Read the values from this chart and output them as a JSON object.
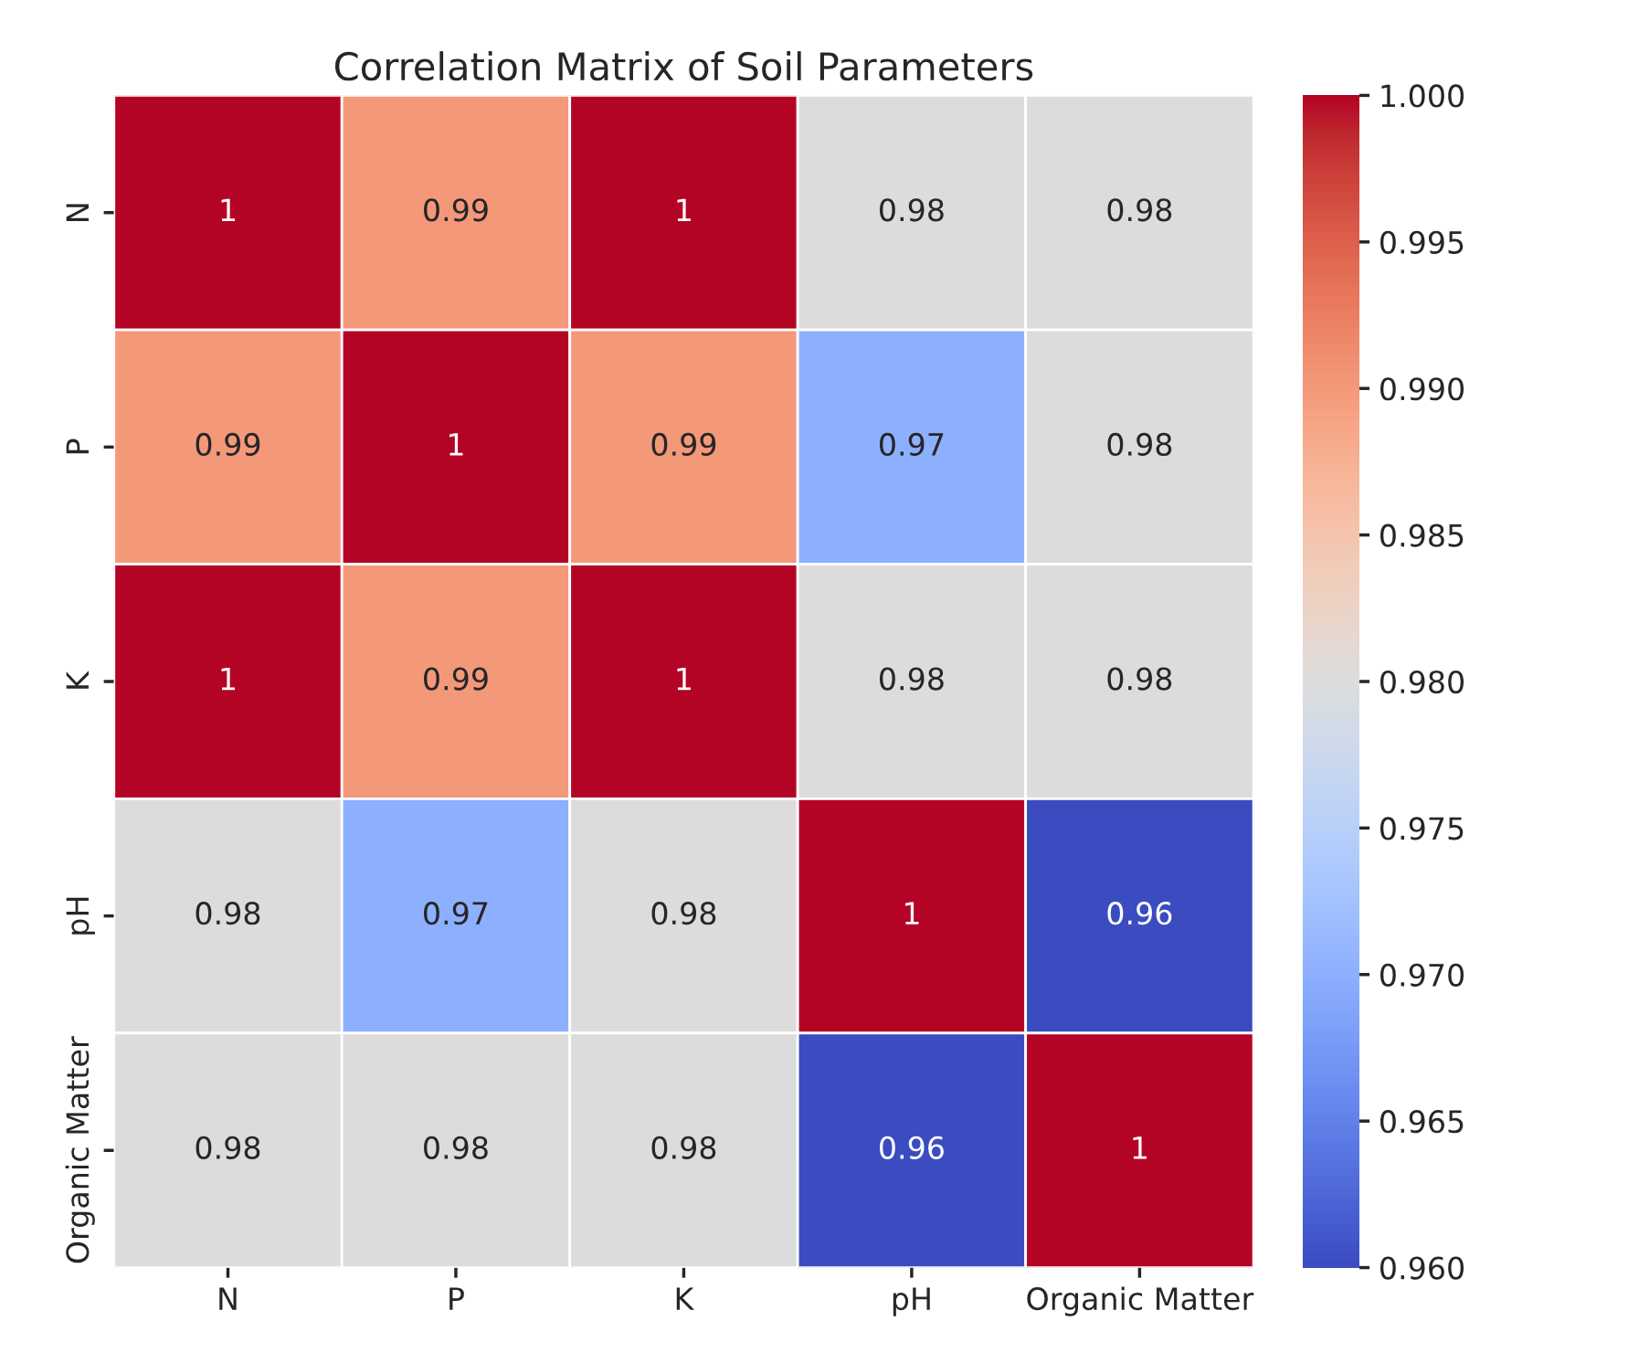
{
  "chart_data": {
    "type": "heatmap",
    "title": "Correlation Matrix of Soil Parameters",
    "categories": [
      "N",
      "P",
      "K",
      "pH",
      "Organic Matter"
    ],
    "y_categories": [
      "N",
      "P",
      "K",
      "pH",
      "Organic Matter"
    ],
    "cells": [
      [
        1,
        0.99,
        1,
        0.98,
        0.98
      ],
      [
        0.99,
        1,
        0.99,
        0.97,
        0.98
      ],
      [
        1,
        0.99,
        1,
        0.98,
        0.98
      ],
      [
        0.98,
        0.97,
        0.98,
        1,
        0.96
      ],
      [
        0.98,
        0.98,
        0.98,
        0.96,
        1
      ]
    ],
    "clim": [
      0.96,
      1.0
    ],
    "cticks": [
      {
        "value": 0.96,
        "label": "0.960"
      },
      {
        "value": 0.965,
        "label": "0.965"
      },
      {
        "value": 0.97,
        "label": "0.970"
      },
      {
        "value": 0.975,
        "label": "0.975"
      },
      {
        "value": 0.98,
        "label": "0.980"
      },
      {
        "value": 0.985,
        "label": "0.985"
      },
      {
        "value": 0.99,
        "label": "0.990"
      },
      {
        "value": 0.995,
        "label": "0.995"
      },
      {
        "value": 1.0,
        "label": "1.000"
      }
    ],
    "data_labels": true
  }
}
